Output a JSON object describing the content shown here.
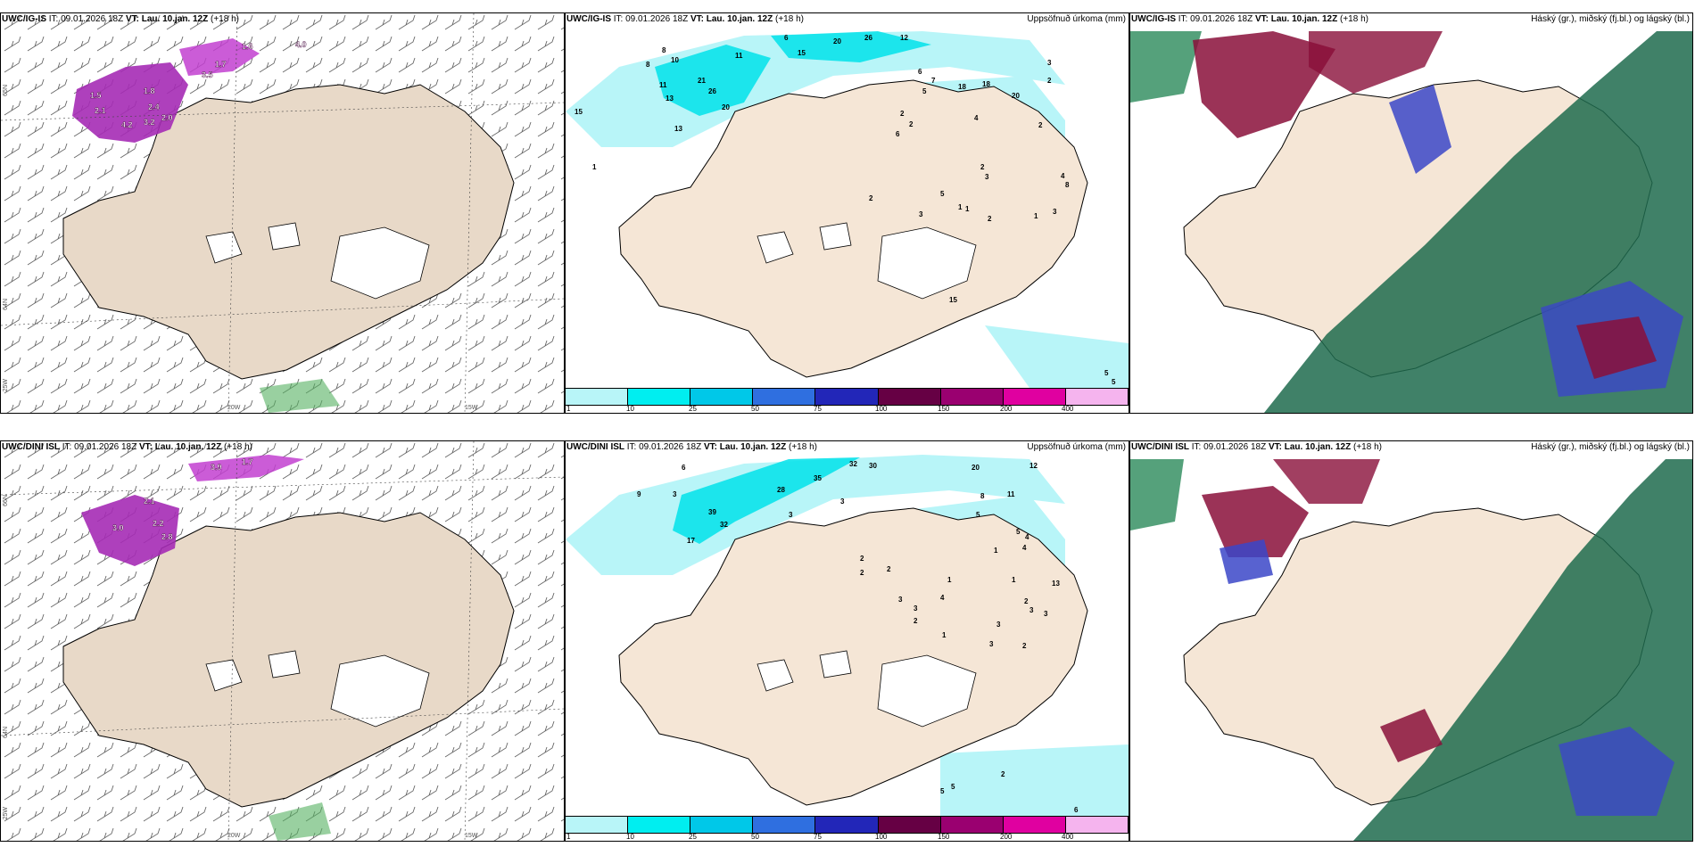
{
  "panels": [
    {
      "model": "UWC/IG-IS",
      "it": "IT: 09.01.2026 18Z",
      "vt_label": "VT:",
      "vt_value": "Lau. 10.jan. 12Z",
      "lead": "(+18 h)",
      "title_right": "",
      "lat_labels": [
        "65N",
        "64N"
      ],
      "lon_labels": [
        "25W",
        "20W",
        "15W"
      ],
      "contour_labels": [
        "1.6",
        "4.0",
        "1.5",
        "3.5",
        "1.8",
        "2.4",
        "2.1",
        "3.2",
        "4.2",
        "2.0",
        "1.7"
      ]
    },
    {
      "model": "UWC/IG-IS",
      "it": "IT: 09.01.2026 18Z",
      "vt_label": "VT:",
      "vt_value": "Lau. 10.jan. 12Z",
      "lead": "(+18 h)",
      "title_right": "Uppsöfnuð úrkoma (mm)",
      "precip_values": [
        "6",
        "20",
        "26",
        "12",
        "15",
        "11",
        "8",
        "8",
        "10",
        "11",
        "21",
        "13",
        "26",
        "20",
        "13",
        "15",
        "18",
        "18",
        "20",
        "3",
        "2",
        "4",
        "2",
        "2",
        "6",
        "5",
        "7",
        "6",
        "2",
        "2",
        "3",
        "4",
        "8",
        "3",
        "1",
        "1",
        "1",
        "2",
        "3",
        "2",
        "1",
        "5",
        "15",
        "5",
        "5"
      ],
      "legend": [
        "1",
        "10",
        "25",
        "50",
        "75",
        "100",
        "150",
        "200",
        "400"
      ]
    },
    {
      "model": "UWC/IG-IS",
      "it": "IT: 09.01.2026 18Z",
      "vt_label": "VT:",
      "vt_value": "Lau. 10.jan. 12Z",
      "lead": "(+18 h)",
      "title_right": "Háský (gr.), miðský (fj.bl.) og lágský (bl.)"
    },
    {
      "model": "UWC/DINI ISL",
      "it": "IT: 09.01.2026 18Z",
      "vt_label": "VT:",
      "vt_value": "Lau. 10.jan. 12Z",
      "lead": "(+18 h)",
      "title_right": "",
      "lat_labels": [
        "66N",
        "64N"
      ],
      "lon_labels": [
        "25W",
        "20W",
        "15W"
      ],
      "contour_labels": [
        "3.9",
        "3.0",
        "2.1",
        "1.7",
        "2.2",
        "2.8"
      ]
    },
    {
      "model": "UWC/DINI ISL",
      "it": "IT: 09.01.2026 18Z",
      "vt_label": "VT:",
      "vt_value": "Lau. 10.jan. 12Z",
      "lead": "(+18 h)",
      "title_right": "Uppsöfnuð úrkoma (mm)",
      "precip_values": [
        "32",
        "30",
        "20",
        "12",
        "6",
        "35",
        "28",
        "9",
        "3",
        "3",
        "39",
        "32",
        "17",
        "3",
        "11",
        "8",
        "5",
        "5",
        "4",
        "4",
        "1",
        "2",
        "2",
        "2",
        "1",
        "3",
        "3",
        "1",
        "4",
        "13",
        "2",
        "3",
        "3",
        "2",
        "3",
        "1",
        "3",
        "2",
        "5",
        "5",
        "2",
        "6"
      ],
      "legend": [
        "1",
        "10",
        "25",
        "50",
        "75",
        "100",
        "150",
        "200",
        "400"
      ]
    },
    {
      "model": "UWC/DINI ISL",
      "it": "IT: 09.01.2026 18Z",
      "vt_label": "VT:",
      "vt_value": "Lau. 10.jan. 12Z",
      "lead": "(+18 h)",
      "title_right": "Háský (gr.), miðský (fj.bl.) og lágský (bl.)"
    }
  ],
  "colors": {
    "land": "#f5e6d6",
    "land_wind": "#e8d9c8",
    "ice": "#ffffff",
    "precip_legend": [
      "#b8f5f8",
      "#00eef0",
      "#00c8e8",
      "#2f6fe0",
      "#2226b8",
      "#660044",
      "#9a0070",
      "#e000a0",
      "#f5b4ee"
    ],
    "high_cloud": "#1f6b4e",
    "mid_cloud": "#3b46c8",
    "low_cloud": "#8a0f3a"
  }
}
